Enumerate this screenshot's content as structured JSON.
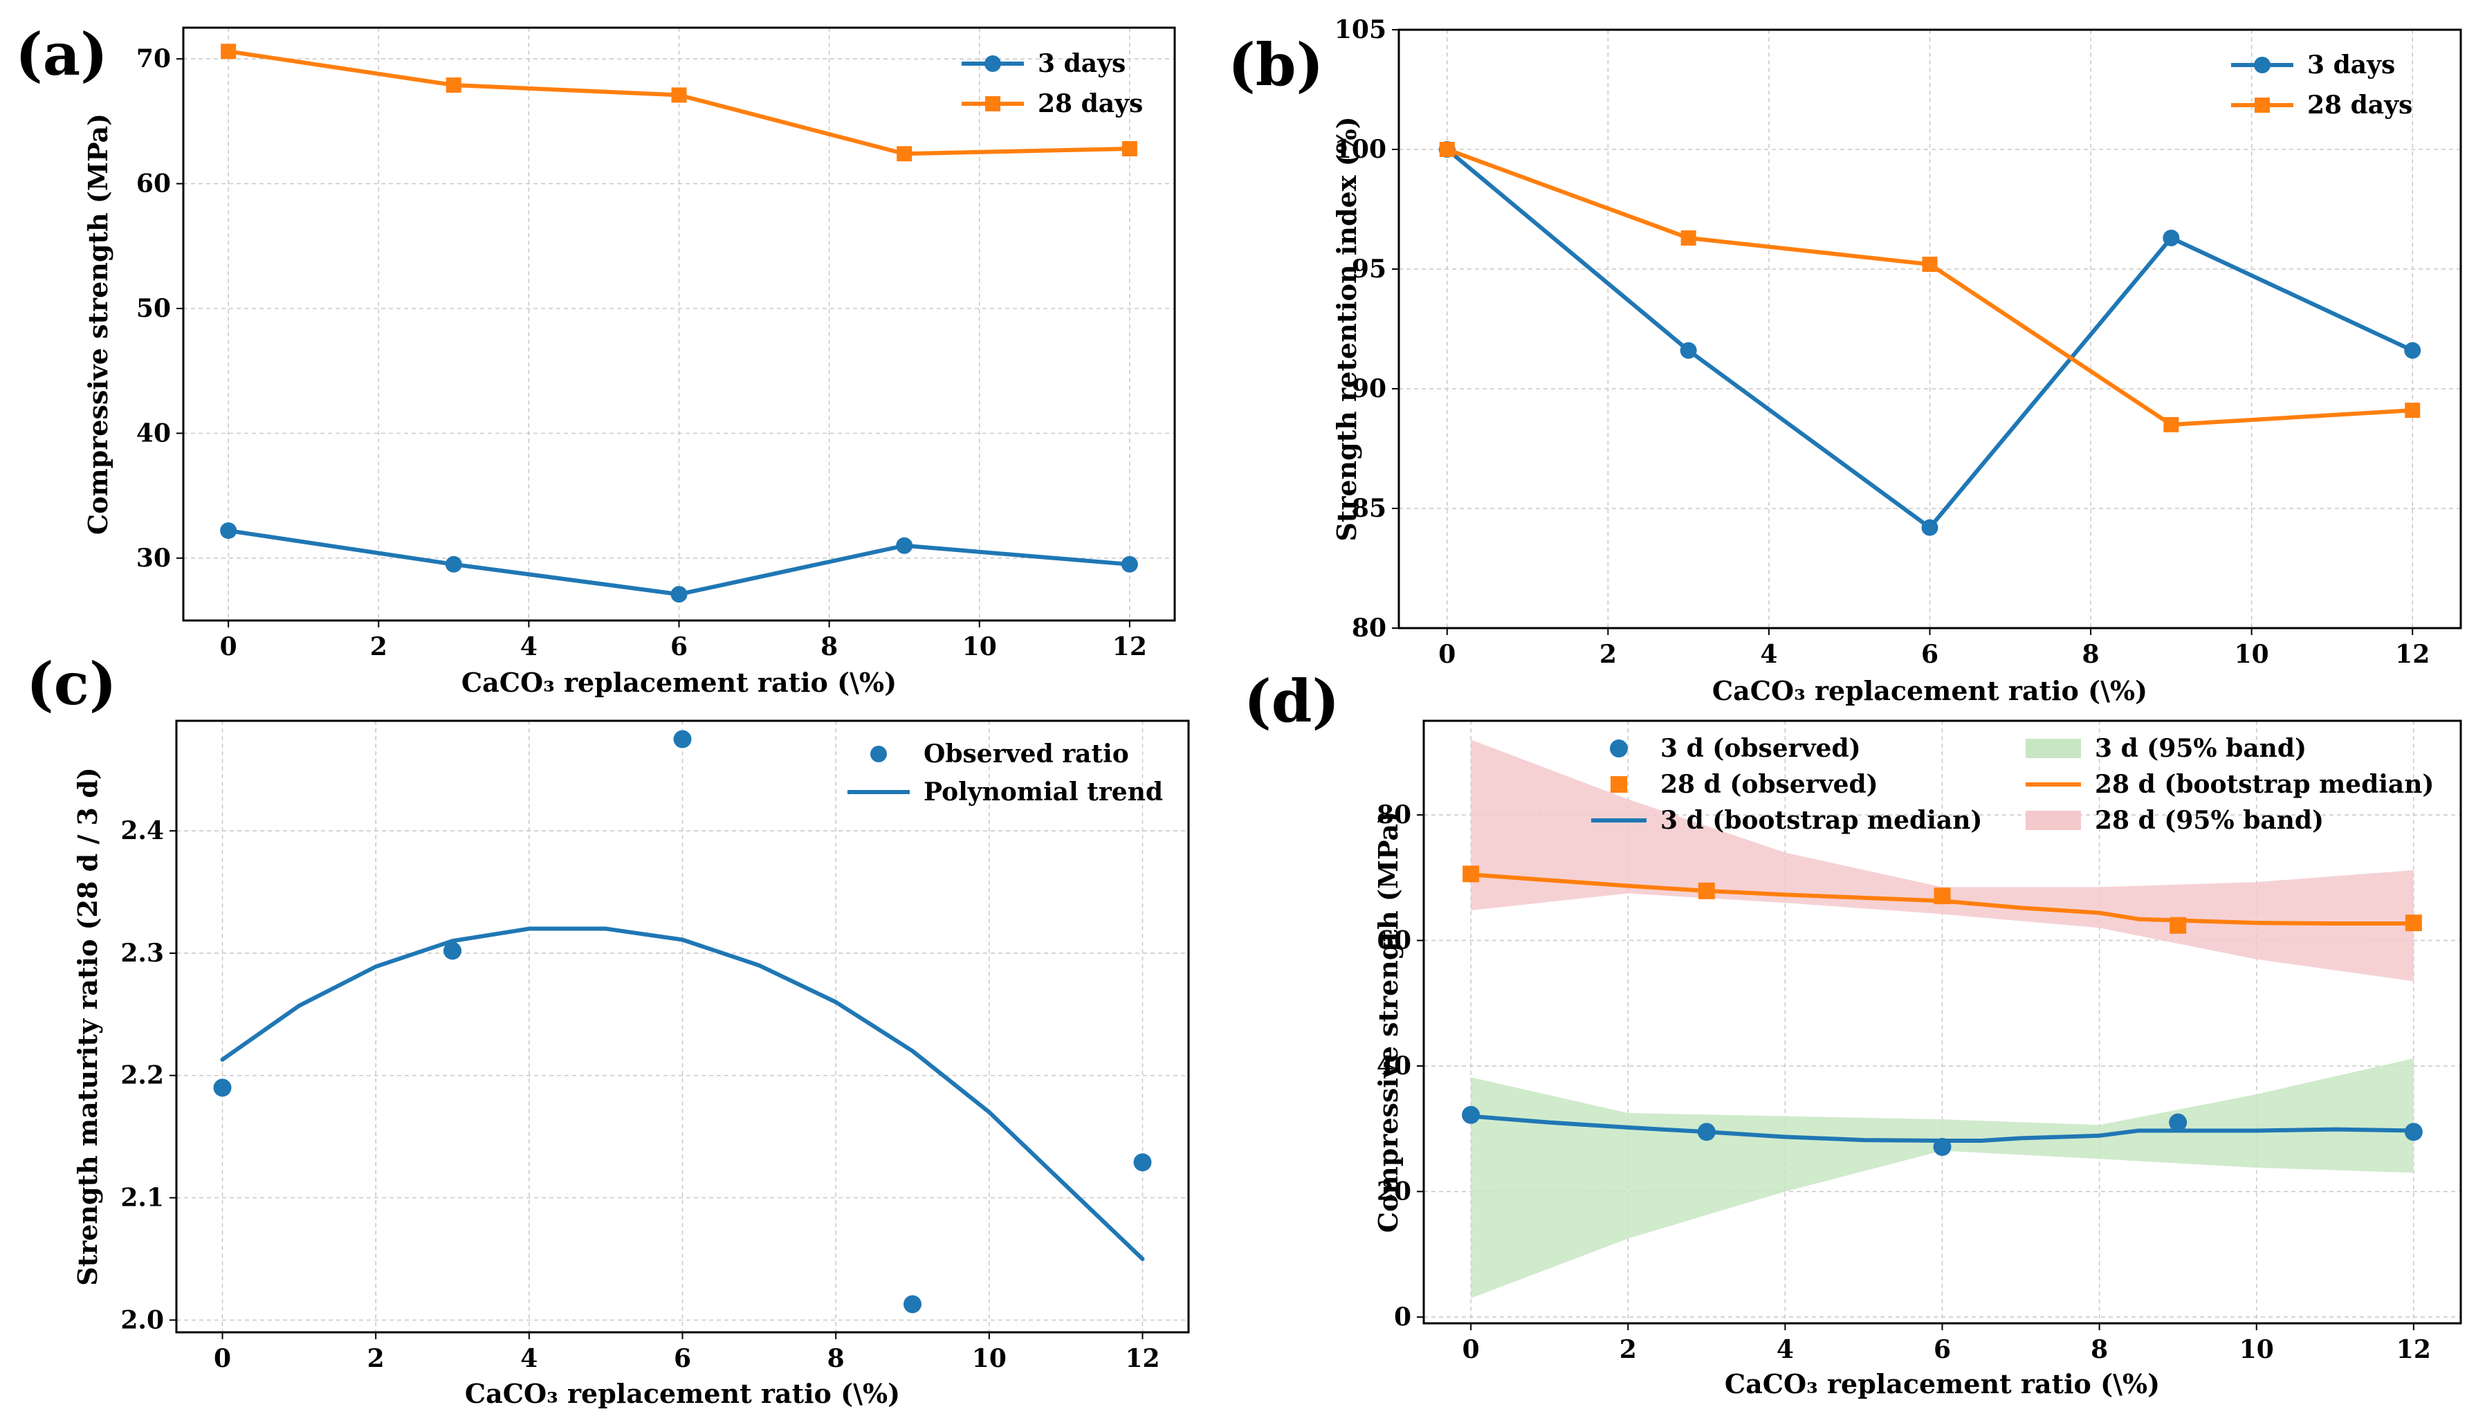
{
  "figure": {
    "panel_labels": [
      "(a)",
      "(b)",
      "(c)",
      "(d)"
    ]
  },
  "colors": {
    "blue": "#1f77b4",
    "orange": "#ff7f0e",
    "green_band": "#c8e6c3",
    "red_band": "#f4c9cc",
    "grid": "#c8c8c8"
  },
  "chart_data": [
    {
      "panel": "(a)",
      "type": "line",
      "xlabel": "CaCO₃ replacement ratio (\\%)",
      "ylabel": "Compressive strength (MPa)",
      "xlim": [
        -0.6,
        12.6
      ],
      "ylim": [
        25,
        72.5
      ],
      "xticks": [
        0,
        2,
        4,
        6,
        8,
        10,
        12
      ],
      "yticks": [
        30,
        40,
        50,
        60,
        70
      ],
      "grid": true,
      "legend_position": "top-right",
      "x": [
        0,
        3,
        6,
        9,
        12
      ],
      "series": [
        {
          "name": "3 days",
          "color": "#1f77b4",
          "marker": "circle",
          "values": [
            32.2,
            29.5,
            27.1,
            31.0,
            29.5
          ]
        },
        {
          "name": "28 days",
          "color": "#ff7f0e",
          "marker": "square",
          "values": [
            70.6,
            67.9,
            67.1,
            62.4,
            62.8
          ]
        }
      ]
    },
    {
      "panel": "(b)",
      "type": "line",
      "xlabel": "CaCO₃ replacement ratio (\\%)",
      "ylabel": "Strength retention index (%)",
      "xlim": [
        -0.6,
        12.6
      ],
      "ylim": [
        80,
        105
      ],
      "xticks": [
        0,
        2,
        4,
        6,
        8,
        10,
        12
      ],
      "yticks": [
        80,
        85,
        90,
        95,
        100,
        105
      ],
      "grid": true,
      "legend_position": "top-right",
      "x": [
        0,
        3,
        6,
        9,
        12
      ],
      "series": [
        {
          "name": "3 days",
          "color": "#1f77b4",
          "marker": "circle",
          "values": [
            100,
            91.6,
            84.2,
            96.3,
            91.6
          ]
        },
        {
          "name": "28 days",
          "color": "#ff7f0e",
          "marker": "square",
          "values": [
            100,
            96.3,
            95.2,
            88.5,
            89.1
          ]
        }
      ]
    },
    {
      "panel": "(c)",
      "type": "scatter",
      "xlabel": "CaCO₃ replacement ratio (\\%)",
      "ylabel": "Strength maturity ratio (28 d / 3 d)",
      "xlim": [
        -0.6,
        12.6
      ],
      "ylim": [
        1.99,
        2.49
      ],
      "xticks": [
        0,
        2,
        4,
        6,
        8,
        10,
        12
      ],
      "yticks": [
        2.0,
        2.1,
        2.2,
        2.3,
        2.4
      ],
      "grid": true,
      "legend_position": "top-right",
      "series": [
        {
          "name": "Observed ratio",
          "color": "#1f77b4",
          "marker": "circle",
          "x": [
            0,
            3,
            6,
            9,
            12
          ],
          "values": [
            2.19,
            2.302,
            2.475,
            2.013,
            2.129
          ]
        },
        {
          "name": "Polynomial trend",
          "color": "#1f77b4",
          "marker": "none",
          "style": "curve",
          "x": [
            0,
            1,
            2,
            3,
            4,
            5,
            6,
            7,
            8,
            9,
            10,
            11,
            12
          ],
          "values": [
            2.213,
            2.257,
            2.289,
            2.31,
            2.32,
            2.32,
            2.311,
            2.29,
            2.26,
            2.22,
            2.17,
            2.11,
            2.05
          ]
        }
      ]
    },
    {
      "panel": "(d)",
      "type": "line",
      "xlabel": "CaCO₃ replacement ratio (\\%)",
      "ylabel": "Compressive strength (MPa)",
      "xlim": [
        -0.6,
        12.6
      ],
      "ylim": [
        -1,
        95
      ],
      "xticks": [
        0,
        2,
        4,
        6,
        8,
        10,
        12
      ],
      "yticks": [
        0,
        20,
        40,
        60,
        80
      ],
      "grid": true,
      "legend_position": "top",
      "legend_order": [
        "3 d (observed)",
        "28 d (observed)",
        "3 d (bootstrap median)",
        "3 d (95% band)",
        "28 d (bootstrap median)",
        "28 d (95% band)"
      ],
      "observed": [
        {
          "name": "3 d (observed)",
          "color": "#1f77b4",
          "marker": "circle",
          "x": [
            0,
            3,
            6,
            9,
            12
          ],
          "values": [
            32.2,
            29.5,
            27.1,
            31.0,
            29.5
          ]
        },
        {
          "name": "28 d (observed)",
          "color": "#ff7f0e",
          "marker": "square",
          "x": [
            0,
            3,
            6,
            9,
            12
          ],
          "values": [
            70.6,
            67.9,
            67.1,
            62.4,
            62.8
          ]
        }
      ],
      "medians": [
        {
          "name": "3 d (bootstrap median)",
          "color": "#1f77b4",
          "x": [
            0,
            1,
            2,
            3,
            4,
            5,
            6,
            6.5,
            7,
            8,
            8.5,
            9,
            10,
            11,
            12
          ],
          "values": [
            32.0,
            31.0,
            30.2,
            29.5,
            28.7,
            28.2,
            28.1,
            28.1,
            28.5,
            28.9,
            29.7,
            29.7,
            29.7,
            29.9,
            29.7
          ]
        },
        {
          "name": "28 d (bootstrap median)",
          "color": "#ff7f0e",
          "x": [
            0,
            1,
            2,
            3,
            4,
            5,
            6,
            7,
            8,
            8.5,
            9,
            10,
            11,
            12
          ],
          "values": [
            70.5,
            69.6,
            68.7,
            67.9,
            67.3,
            66.8,
            66.3,
            65.2,
            64.4,
            63.4,
            63.2,
            62.8,
            62.7,
            62.7
          ]
        }
      ],
      "bands": [
        {
          "name": "3 d (95% band)",
          "color": "#c8e6c3",
          "x": [
            0,
            2,
            4,
            6,
            8,
            10,
            12
          ],
          "lower": [
            3.0,
            12.5,
            20.0,
            26.5,
            25.2,
            23.8,
            23.0
          ],
          "upper": [
            38.2,
            32.5,
            32.0,
            31.5,
            30.6,
            35.5,
            41.2
          ]
        },
        {
          "name": "28 d (95% band)",
          "color": "#f4c9cc",
          "x": [
            0,
            2,
            4,
            6,
            8,
            10,
            12
          ],
          "lower": [
            64.8,
            67.5,
            66.0,
            64.2,
            62.0,
            57.0,
            53.5
          ],
          "upper": [
            92.0,
            82.5,
            74.0,
            68.5,
            68.5,
            69.3,
            71.2
          ]
        }
      ]
    }
  ]
}
